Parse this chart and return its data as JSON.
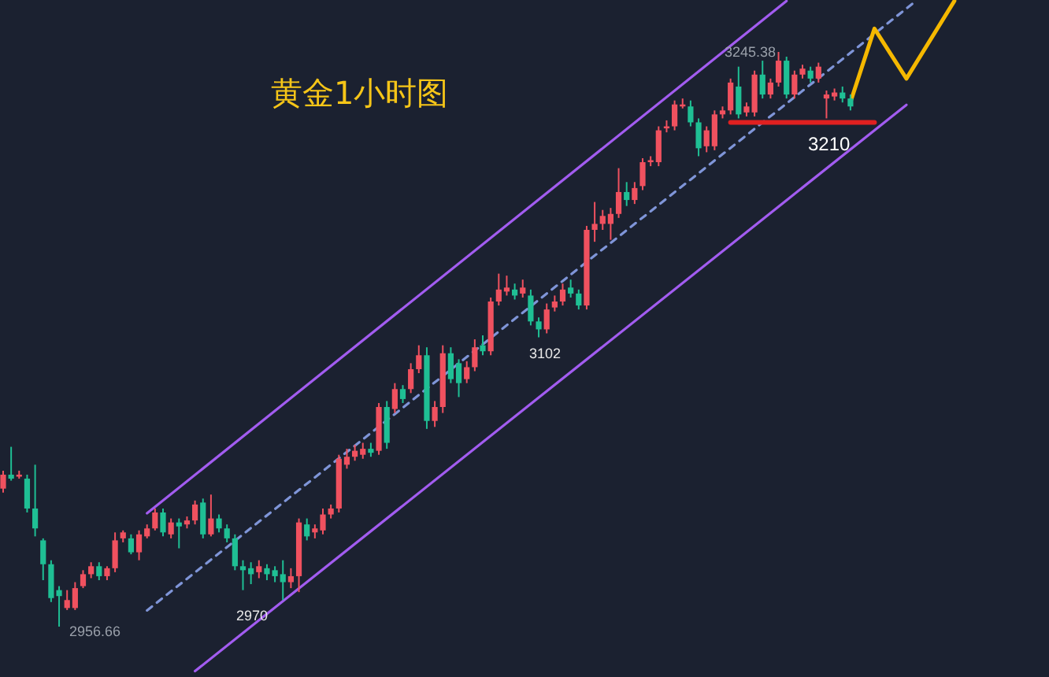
{
  "chart_data": {
    "type": "candlestick",
    "title": "黄金1小时图",
    "categories": [
      null,
      null,
      null,
      null,
      null,
      null,
      null,
      null,
      null,
      null,
      null,
      null,
      null,
      null,
      null,
      null,
      null,
      null,
      null,
      null,
      null,
      null,
      null,
      null,
      null,
      null,
      null,
      null,
      null,
      null,
      null,
      null,
      null,
      null,
      null,
      null,
      null,
      null,
      null,
      null,
      null,
      null,
      null,
      null,
      null,
      null,
      null,
      null,
      null,
      null,
      null,
      null,
      null,
      null,
      null,
      null,
      null,
      null,
      null,
      null,
      null,
      null,
      null,
      null,
      null,
      null,
      null,
      null,
      null,
      null,
      null,
      null,
      null,
      null,
      null,
      null,
      null,
      null,
      null,
      null,
      null,
      null,
      null,
      null,
      null,
      null,
      null,
      null,
      null,
      null,
      null,
      null,
      null,
      null,
      null,
      null,
      null,
      null,
      null,
      null,
      null,
      null,
      null,
      null,
      null,
      null,
      null,
      null,
      null,
      null,
      null,
      null,
      null,
      null,
      null,
      null,
      null,
      null,
      null,
      null
    ],
    "ohlc": [
      [
        3026,
        3035,
        3024,
        3033
      ],
      [
        3033,
        3047,
        3030,
        3031
      ],
      [
        3032,
        3035,
        3031,
        3033
      ],
      [
        3031,
        3033,
        3014,
        3016
      ],
      [
        3016,
        3038,
        3002,
        3006
      ],
      [
        3000,
        3001,
        2980,
        2988
      ],
      [
        2988,
        2990,
        2969,
        2971
      ],
      [
        2975,
        2977,
        2956.66,
        2972
      ],
      [
        2966,
        2975,
        2965,
        2970
      ],
      [
        2966,
        2979,
        2965,
        2976
      ],
      [
        2977,
        2985,
        2976,
        2983
      ],
      [
        2983,
        2989,
        2981,
        2987
      ],
      [
        2987,
        2989,
        2980,
        2982
      ],
      [
        2982,
        2987,
        2980,
        2986
      ],
      [
        2986,
        3004,
        2984,
        3000
      ],
      [
        3001,
        3005,
        2999,
        3004
      ],
      [
        3001,
        3003,
        2993,
        2994
      ],
      [
        2994,
        3005,
        2990,
        3003
      ],
      [
        3002,
        3008,
        3001,
        3006
      ],
      [
        3006,
        3016,
        3005,
        3014
      ],
      [
        3014,
        3016,
        3002,
        3004
      ],
      [
        3003,
        3011,
        3001,
        3009
      ],
      [
        3009,
        3011,
        2996,
        3007
      ],
      [
        3008,
        3012,
        3006,
        3010
      ],
      [
        3010,
        3020,
        3008,
        3018
      ],
      [
        3019,
        3021,
        3001,
        3003
      ],
      [
        3003,
        3023,
        3002,
        3011
      ],
      [
        3011,
        3013,
        3004,
        3006
      ],
      [
        3006,
        3008,
        2999,
        3001
      ],
      [
        3001,
        3003,
        2985,
        2987
      ],
      [
        2987,
        2990,
        2975,
        2985
      ],
      [
        2986,
        2989,
        2978,
        2983
      ],
      [
        2984,
        2990,
        2981,
        2987
      ],
      [
        2986,
        2988,
        2980,
        2983
      ],
      [
        2985,
        2987,
        2979,
        2982
      ],
      [
        2983,
        2990,
        2970,
        2979
      ],
      [
        2979,
        2986,
        2976,
        2982
      ],
      [
        2982,
        3011,
        2974,
        3009
      ],
      [
        3008,
        3011,
        3000,
        3002
      ],
      [
        3004,
        3008,
        3001,
        3006
      ],
      [
        3005,
        3016,
        3003,
        3013
      ],
      [
        3013,
        3018,
        3011,
        3016
      ],
      [
        3016,
        3043,
        3014,
        3041
      ],
      [
        3038,
        3046,
        3036,
        3042
      ],
      [
        3042,
        3048,
        3040,
        3045
      ],
      [
        3043,
        3049,
        3041,
        3046
      ],
      [
        3046,
        3049,
        3042,
        3044
      ],
      [
        3045,
        3069,
        3043,
        3067
      ],
      [
        3067,
        3070,
        3046,
        3049
      ],
      [
        3066,
        3079,
        3064,
        3076
      ],
      [
        3076,
        3078,
        3069,
        3071
      ],
      [
        3076,
        3089,
        3074,
        3086
      ],
      [
        3086,
        3098,
        3084,
        3093
      ],
      [
        3093,
        3097,
        3056,
        3060
      ],
      [
        3060,
        3070,
        3057,
        3067
      ],
      [
        3067,
        3098,
        3064,
        3094
      ],
      [
        3094,
        3097,
        3079,
        3081
      ],
      [
        3089,
        3091,
        3072,
        3079
      ],
      [
        3081,
        3090,
        3079,
        3087
      ],
      [
        3087,
        3101,
        3085,
        3097
      ],
      [
        3098,
        3103,
        3093,
        3095
      ],
      [
        3095,
        3122,
        3093,
        3120
      ],
      [
        3120,
        3134,
        3118,
        3126
      ],
      [
        3125,
        3133,
        3123,
        3127
      ],
      [
        3126,
        3129,
        3121,
        3123
      ],
      [
        3124,
        3131,
        3122,
        3127
      ],
      [
        3123,
        3126,
        3108,
        3110
      ],
      [
        3110,
        3112,
        3102,
        3106
      ],
      [
        3106,
        3119,
        3104,
        3116
      ],
      [
        3117,
        3123,
        3115,
        3120
      ],
      [
        3120,
        3129,
        3118,
        3126
      ],
      [
        3127,
        3131,
        3122,
        3124
      ],
      [
        3124,
        3126,
        3116,
        3118
      ],
      [
        3118,
        3158,
        3116,
        3156
      ],
      [
        3156,
        3170,
        3150,
        3159
      ],
      [
        3159,
        3166,
        3156,
        3163
      ],
      [
        3159,
        3167,
        3151,
        3164
      ],
      [
        3164,
        3187,
        3162,
        3175
      ],
      [
        3175,
        3180,
        3168,
        3171
      ],
      [
        3171,
        3180,
        3169,
        3177
      ],
      [
        3178,
        3192,
        3176,
        3190
      ],
      [
        3190,
        3193,
        3188,
        3191
      ],
      [
        3190,
        3208,
        3188,
        3206
      ],
      [
        3207,
        3211,
        3205,
        3208
      ],
      [
        3208,
        3221,
        3206,
        3219
      ],
      [
        3218,
        3222,
        3217,
        3219
      ],
      [
        3218,
        3221,
        3208,
        3210
      ],
      [
        3210,
        3212,
        3193,
        3197
      ],
      [
        3198,
        3208,
        3195,
        3206
      ],
      [
        3198,
        3216,
        3196,
        3214
      ],
      [
        3214,
        3218,
        3212,
        3216
      ],
      [
        3216,
        3232,
        3214,
        3230
      ],
      [
        3228,
        3238,
        3212,
        3214
      ],
      [
        3215,
        3220,
        3213,
        3218
      ],
      [
        3215,
        3236,
        3213,
        3234
      ],
      [
        3234,
        3241,
        3222,
        3224
      ],
      [
        3224,
        3232,
        3222,
        3230
      ],
      [
        3230,
        3245.38,
        3228,
        3241
      ],
      [
        3241,
        3243,
        3222,
        3224
      ],
      [
        3224,
        3236,
        3222,
        3234
      ],
      [
        3234,
        3239,
        3232,
        3237
      ],
      [
        3236,
        3238,
        3230,
        3232
      ],
      [
        3232,
        3240,
        3230,
        3238
      ],
      [
        3222,
        3226,
        3212,
        3224
      ],
      [
        3223,
        3227,
        3221,
        3225
      ],
      [
        3225,
        3228,
        3220,
        3222
      ],
      [
        3222,
        3224,
        3216,
        3218
      ],
      null,
      null,
      null,
      null,
      null,
      null,
      null,
      null,
      null,
      null,
      null,
      null,
      null
    ],
    "series": [
      {
        "type": "line",
        "color": "#a25cf0",
        "line_style": "solid",
        "values": [
          null,
          null,
          null,
          null,
          null,
          null,
          null,
          null,
          null,
          null,
          null,
          null,
          null,
          null,
          null,
          null,
          null,
          null,
          3013.6,
          null,
          null,
          null,
          null,
          null,
          null,
          null,
          null,
          null,
          null,
          null,
          null,
          null,
          null,
          null,
          null,
          null,
          null,
          null,
          null,
          null,
          null,
          null,
          null,
          null,
          null,
          null,
          null,
          null,
          null,
          null,
          null,
          null,
          null,
          null,
          null,
          null,
          null,
          null,
          null,
          null,
          null,
          null,
          null,
          null,
          null,
          null,
          null,
          null,
          null,
          null,
          null,
          null,
          null,
          null,
          null,
          null,
          null,
          null,
          null,
          null,
          null,
          null,
          null,
          null,
          null,
          null,
          null,
          null,
          null,
          null,
          null,
          null,
          null,
          null,
          null,
          null,
          null,
          null,
          3271,
          null,
          null,
          null,
          null,
          null,
          null,
          null,
          null,
          null,
          null,
          null,
          null,
          null,
          null,
          null,
          null,
          null,
          null,
          null,
          null,
          null
        ]
      },
      {
        "type": "line",
        "color": "#a25cf0",
        "line_style": "solid",
        "values": [
          null,
          null,
          null,
          null,
          null,
          null,
          null,
          null,
          null,
          null,
          null,
          null,
          null,
          null,
          null,
          null,
          null,
          null,
          null,
          null,
          null,
          null,
          null,
          null,
          2934.3,
          null,
          null,
          null,
          null,
          null,
          null,
          null,
          null,
          null,
          null,
          null,
          null,
          null,
          null,
          null,
          null,
          null,
          null,
          null,
          null,
          null,
          null,
          null,
          null,
          null,
          null,
          null,
          null,
          null,
          null,
          null,
          null,
          null,
          null,
          null,
          null,
          null,
          null,
          null,
          null,
          null,
          null,
          null,
          null,
          null,
          null,
          null,
          null,
          null,
          null,
          null,
          null,
          null,
          null,
          null,
          null,
          null,
          null,
          null,
          null,
          null,
          null,
          null,
          null,
          null,
          null,
          null,
          null,
          null,
          null,
          null,
          null,
          null,
          null,
          null,
          null,
          null,
          null,
          null,
          null,
          null,
          null,
          null,
          null,
          null,
          null,
          null,
          null,
          3218.8,
          null,
          null,
          null,
          null,
          null,
          null
        ]
      },
      {
        "type": "line",
        "color": "#7f95d8",
        "line_style": "dashed",
        "values": [
          null,
          null,
          null,
          null,
          null,
          null,
          null,
          null,
          null,
          null,
          null,
          null,
          null,
          null,
          null,
          null,
          null,
          null,
          2964.8,
          null,
          null,
          null,
          null,
          null,
          null,
          null,
          null,
          null,
          null,
          null,
          null,
          null,
          null,
          null,
          null,
          null,
          null,
          null,
          null,
          null,
          null,
          null,
          null,
          null,
          null,
          null,
          null,
          null,
          null,
          null,
          null,
          null,
          null,
          null,
          null,
          null,
          null,
          null,
          null,
          null,
          null,
          null,
          null,
          null,
          null,
          null,
          null,
          null,
          null,
          null,
          null,
          null,
          null,
          null,
          null,
          null,
          null,
          null,
          null,
          null,
          null,
          null,
          null,
          null,
          null,
          null,
          null,
          null,
          null,
          null,
          null,
          null,
          null,
          null,
          null,
          null,
          null,
          null,
          null,
          null,
          null,
          null,
          null,
          null,
          null,
          null,
          null,
          null,
          null,
          null,
          null,
          null,
          null,
          null,
          3270.4,
          null,
          null,
          null,
          null,
          null
        ]
      },
      {
        "type": "line",
        "color": "#e02020",
        "line_style": "solid",
        "values": [
          null,
          null,
          null,
          null,
          null,
          null,
          null,
          null,
          null,
          null,
          null,
          null,
          null,
          null,
          null,
          null,
          null,
          null,
          null,
          null,
          null,
          null,
          null,
          null,
          null,
          null,
          null,
          null,
          null,
          null,
          null,
          null,
          null,
          null,
          null,
          null,
          null,
          null,
          null,
          null,
          null,
          null,
          null,
          null,
          null,
          null,
          null,
          null,
          null,
          null,
          null,
          null,
          null,
          null,
          null,
          null,
          null,
          null,
          null,
          null,
          null,
          null,
          null,
          null,
          null,
          null,
          null,
          null,
          null,
          null,
          null,
          null,
          null,
          null,
          null,
          null,
          null,
          null,
          null,
          null,
          null,
          null,
          null,
          null,
          null,
          null,
          null,
          null,
          null,
          null,
          null,
          3210,
          null,
          null,
          null,
          null,
          null,
          null,
          null,
          null,
          null,
          null,
          null,
          null,
          null,
          null,
          null,
          null,
          null,
          3210,
          null,
          null,
          null,
          null,
          null,
          null,
          null,
          null,
          null,
          null
        ]
      },
      {
        "type": "line",
        "color": "#f5b800",
        "line_style": "solid",
        "values": [
          null,
          null,
          null,
          null,
          null,
          null,
          null,
          null,
          null,
          null,
          null,
          null,
          null,
          null,
          null,
          null,
          null,
          null,
          null,
          null,
          null,
          null,
          null,
          null,
          null,
          null,
          null,
          null,
          null,
          null,
          null,
          null,
          null,
          null,
          null,
          null,
          null,
          null,
          null,
          null,
          null,
          null,
          null,
          null,
          null,
          null,
          null,
          null,
          null,
          null,
          null,
          null,
          null,
          null,
          null,
          null,
          null,
          null,
          null,
          null,
          null,
          null,
          null,
          null,
          null,
          null,
          null,
          null,
          null,
          null,
          null,
          null,
          null,
          null,
          null,
          null,
          null,
          null,
          null,
          null,
          null,
          null,
          null,
          null,
          null,
          null,
          null,
          null,
          null,
          null,
          null,
          null,
          null,
          null,
          null,
          null,
          null,
          null,
          null,
          null,
          null,
          null,
          null,
          null,
          null,
          null,
          3220.2,
          null,
          null,
          3257.1,
          null,
          null,
          null,
          3232,
          null,
          null,
          null,
          null,
          null,
          3271
        ]
      }
    ],
    "annotations": [
      "3245.38",
      "2956.66",
      "2970",
      {
        "text": "3102",
        "y": 3102
      },
      {
        "text": "3210",
        "y": 3210
      }
    ]
  }
}
